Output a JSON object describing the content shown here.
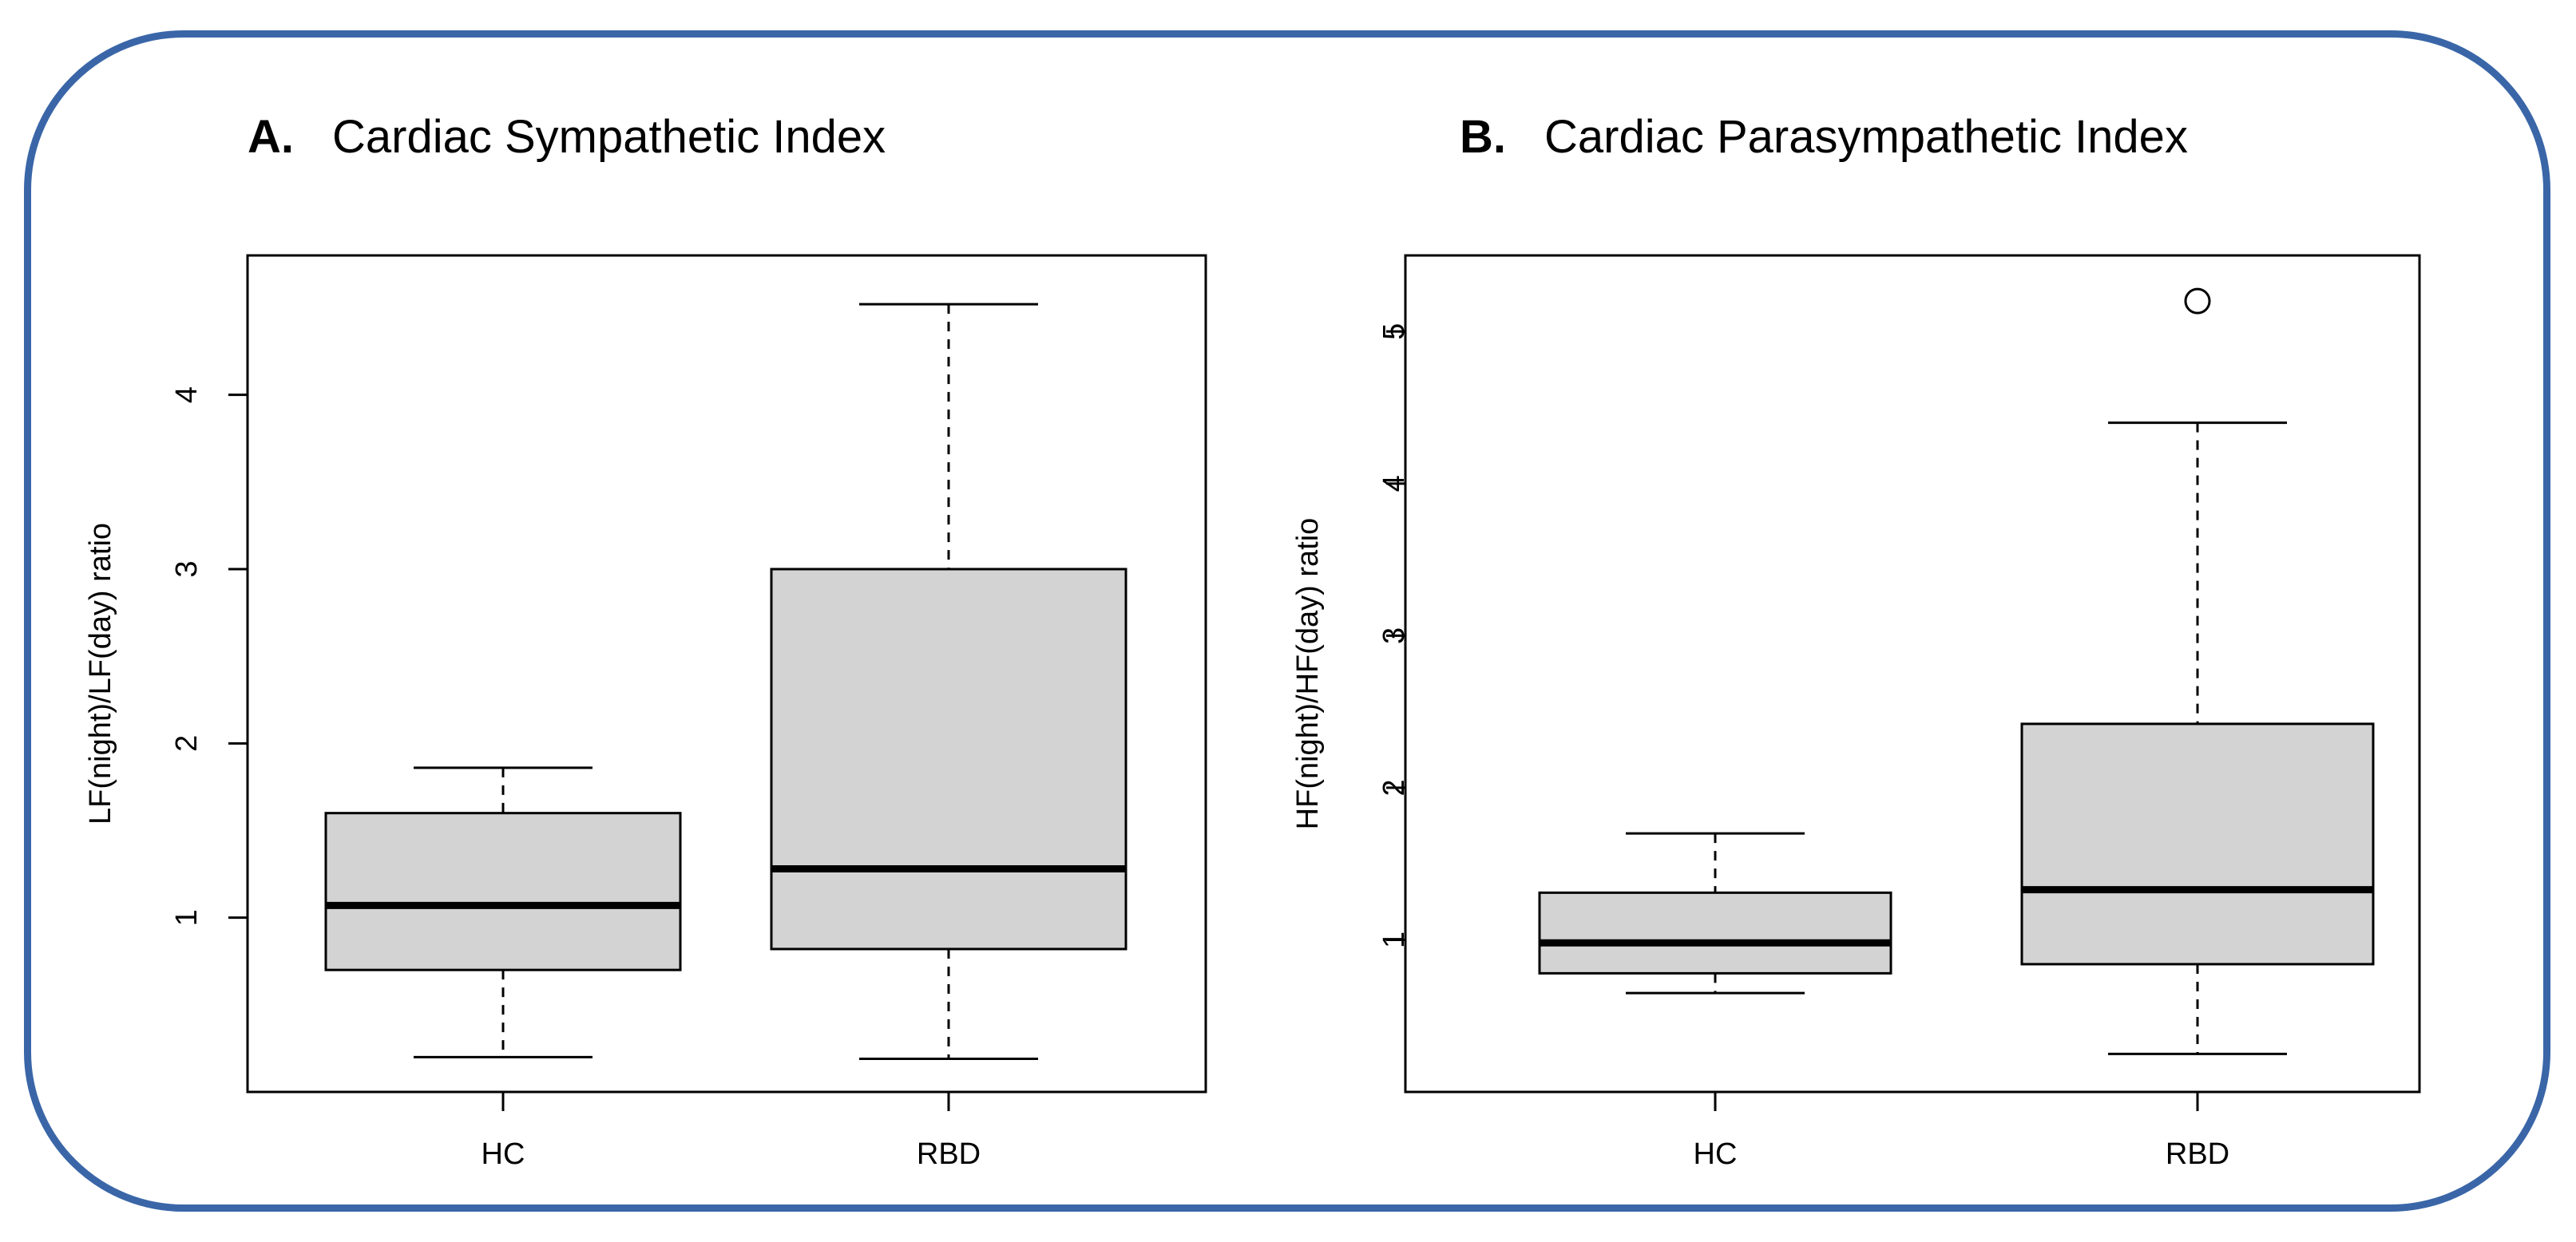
{
  "chart_data": [
    {
      "type": "box",
      "panel_letter": "A.",
      "title": "Cardiac Sympathetic Index",
      "xlabel": "",
      "ylabel": "LF(night)/LF(day) ratio",
      "ylim": [
        0.0,
        4.8
      ],
      "yticks": [
        1,
        2,
        3,
        4
      ],
      "categories": [
        "HC",
        "RBD"
      ],
      "boxes": [
        {
          "category": "HC",
          "whisker_low": 0.2,
          "q1": 0.7,
          "median": 1.07,
          "q3": 1.6,
          "whisker_high": 1.86,
          "outliers": []
        },
        {
          "category": "RBD",
          "whisker_low": 0.19,
          "q1": 0.82,
          "median": 1.28,
          "q3": 3.0,
          "whisker_high": 4.52,
          "outliers": []
        }
      ]
    },
    {
      "type": "box",
      "panel_letter": "B.",
      "title": "Cardiac Parasympathetic Index",
      "xlabel": "",
      "ylabel": "HF(night)/HF(day) ratio",
      "ylim": [
        0.0,
        5.5
      ],
      "yticks": [
        1,
        2,
        3,
        4,
        5
      ],
      "categories": [
        "HC",
        "RBD"
      ],
      "boxes": [
        {
          "category": "HC",
          "whisker_low": 0.65,
          "q1": 0.78,
          "median": 0.98,
          "q3": 1.31,
          "whisker_high": 1.7,
          "outliers": []
        },
        {
          "category": "RBD",
          "whisker_low": 0.25,
          "q1": 0.84,
          "median": 1.33,
          "q3": 2.42,
          "whisker_high": 4.4,
          "outliers": [
            5.2
          ]
        }
      ]
    }
  ],
  "style": {
    "frame_color": "#3a66a8",
    "box_fill": "#d3d3d3",
    "line_color": "#000000"
  }
}
